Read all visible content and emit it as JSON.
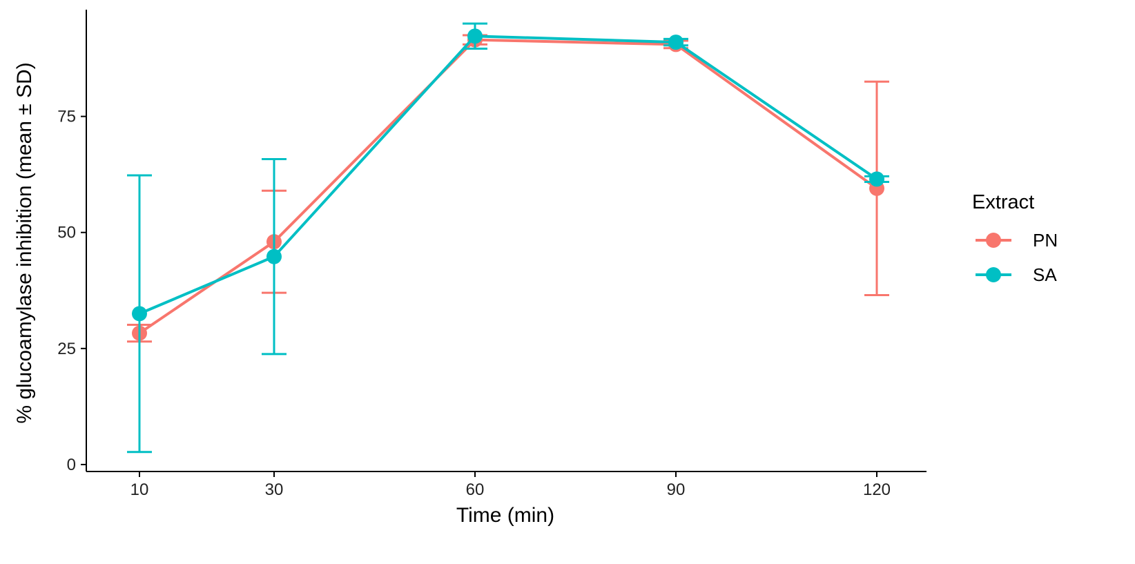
{
  "chart_data": {
    "type": "line",
    "x_categories": [
      "10",
      "30",
      "60",
      "90",
      "120"
    ],
    "y_ticks": [
      0,
      25,
      50,
      75
    ],
    "ylim": [
      -1.5,
      98
    ],
    "xlabel": "Time (min)",
    "ylabel": "% glucoamylase inhibition (mean ± SD)",
    "grid": false,
    "legend": {
      "title": "Extract",
      "position": "right"
    },
    "series": [
      {
        "name": "PN",
        "color": "#F8766D",
        "values": [
          28.3,
          48.0,
          91.5,
          90.5,
          59.5
        ],
        "sd": [
          1.8,
          11.0,
          1.0,
          0.8,
          23.0
        ]
      },
      {
        "name": "SA",
        "color": "#00BFC4",
        "values": [
          32.5,
          44.8,
          92.3,
          91.0,
          61.5
        ],
        "sd": [
          29.8,
          21.0,
          2.7,
          0.7,
          0.6
        ]
      }
    ]
  }
}
